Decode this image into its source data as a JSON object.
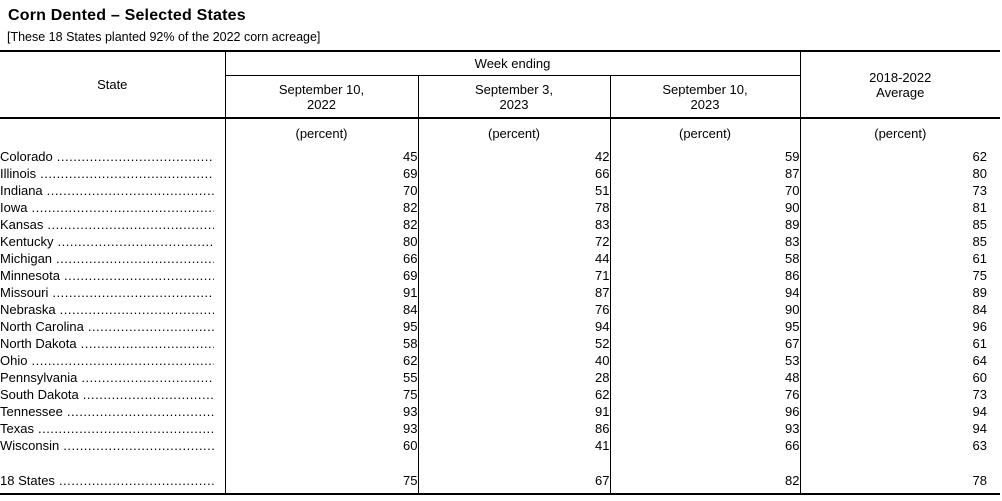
{
  "title": "Corn Dented – Selected States",
  "subtitle": "[These 18 States planted 92% of the 2022 corn acreage]",
  "table": {
    "state_header": "State",
    "week_ending_header": "Week ending",
    "average_header": {
      "line1": "2018-2022",
      "line2": "Average"
    },
    "date_columns": [
      {
        "line1": "September 10,",
        "line2": "2022"
      },
      {
        "line1": "September 3,",
        "line2": "2023"
      },
      {
        "line1": "September 10,",
        "line2": "2023"
      }
    ],
    "unit_label": "(percent)",
    "dot_leader": "................................................................................",
    "rows": [
      {
        "state": "Colorado",
        "values": [
          45,
          42,
          59,
          62
        ]
      },
      {
        "state": "Illinois",
        "values": [
          69,
          66,
          87,
          80
        ]
      },
      {
        "state": "Indiana",
        "values": [
          70,
          51,
          70,
          73
        ]
      },
      {
        "state": "Iowa",
        "values": [
          82,
          78,
          90,
          81
        ]
      },
      {
        "state": "Kansas",
        "values": [
          82,
          83,
          89,
          85
        ]
      },
      {
        "state": "Kentucky",
        "values": [
          80,
          72,
          83,
          85
        ]
      },
      {
        "state": "Michigan",
        "values": [
          66,
          44,
          58,
          61
        ]
      },
      {
        "state": "Minnesota",
        "values": [
          69,
          71,
          86,
          75
        ]
      },
      {
        "state": "Missouri",
        "values": [
          91,
          87,
          94,
          89
        ]
      },
      {
        "state": "Nebraska",
        "values": [
          84,
          76,
          90,
          84
        ]
      },
      {
        "state": "North Carolina",
        "values": [
          95,
          94,
          95,
          96
        ]
      },
      {
        "state": "North Dakota",
        "values": [
          58,
          52,
          67,
          61
        ]
      },
      {
        "state": "Ohio",
        "values": [
          62,
          40,
          53,
          64
        ]
      },
      {
        "state": "Pennsylvania",
        "values": [
          55,
          28,
          48,
          60
        ]
      },
      {
        "state": "South Dakota",
        "values": [
          75,
          62,
          76,
          73
        ]
      },
      {
        "state": "Tennessee",
        "values": [
          93,
          91,
          96,
          94
        ]
      },
      {
        "state": "Texas",
        "values": [
          93,
          86,
          93,
          94
        ]
      },
      {
        "state": "Wisconsin",
        "values": [
          60,
          41,
          66,
          63
        ]
      }
    ],
    "total_row": {
      "state": "18 States",
      "values": [
        75,
        67,
        82,
        78
      ]
    }
  },
  "chart_data": {
    "type": "table",
    "title": "Corn Dented – Selected States",
    "columns": [
      "State",
      "September 10, 2022",
      "September 3, 2023",
      "September 10, 2023",
      "2018-2022 Average"
    ],
    "unit": "percent"
  }
}
